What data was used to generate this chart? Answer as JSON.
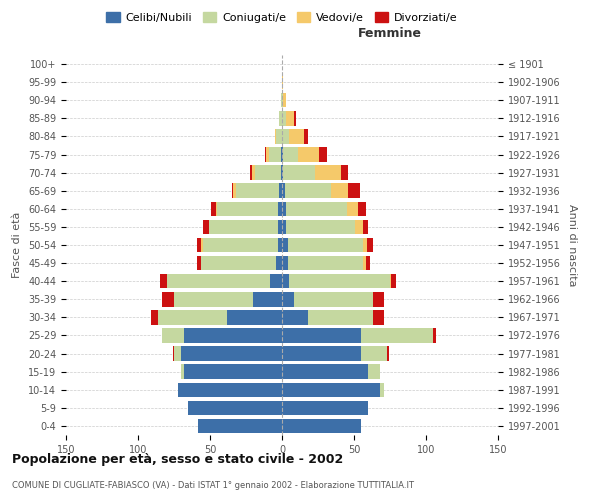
{
  "age_groups": [
    "0-4",
    "5-9",
    "10-14",
    "15-19",
    "20-24",
    "25-29",
    "30-34",
    "35-39",
    "40-44",
    "45-49",
    "50-54",
    "55-59",
    "60-64",
    "65-69",
    "70-74",
    "75-79",
    "80-84",
    "85-89",
    "90-94",
    "95-99",
    "100+"
  ],
  "birth_years": [
    "1997-2001",
    "1992-1996",
    "1987-1991",
    "1982-1986",
    "1977-1981",
    "1972-1976",
    "1967-1971",
    "1962-1966",
    "1957-1961",
    "1952-1956",
    "1947-1951",
    "1942-1946",
    "1937-1941",
    "1932-1936",
    "1927-1931",
    "1922-1926",
    "1917-1921",
    "1912-1916",
    "1907-1911",
    "1902-1906",
    "≤ 1901"
  ],
  "male": {
    "celibi": [
      58,
      65,
      72,
      68,
      70,
      68,
      38,
      20,
      8,
      4,
      3,
      3,
      3,
      2,
      1,
      1,
      0,
      0,
      0,
      0,
      0
    ],
    "coniugati": [
      0,
      0,
      0,
      2,
      5,
      15,
      48,
      55,
      72,
      52,
      52,
      48,
      42,
      30,
      18,
      8,
      4,
      2,
      1,
      0,
      0
    ],
    "vedovi": [
      0,
      0,
      0,
      0,
      0,
      0,
      0,
      0,
      0,
      0,
      1,
      0,
      1,
      2,
      2,
      2,
      1,
      0,
      0,
      0,
      0
    ],
    "divorziati": [
      0,
      0,
      0,
      0,
      1,
      0,
      5,
      8,
      5,
      3,
      3,
      4,
      3,
      1,
      1,
      1,
      0,
      0,
      0,
      0,
      0
    ]
  },
  "female": {
    "nubili": [
      55,
      60,
      68,
      60,
      55,
      55,
      18,
      8,
      5,
      4,
      4,
      3,
      3,
      2,
      1,
      1,
      0,
      0,
      0,
      0,
      0
    ],
    "coniugate": [
      0,
      0,
      3,
      8,
      18,
      50,
      45,
      55,
      70,
      52,
      52,
      48,
      42,
      32,
      22,
      10,
      5,
      3,
      1,
      0,
      0
    ],
    "vedove": [
      0,
      0,
      0,
      0,
      0,
      0,
      0,
      0,
      1,
      2,
      3,
      5,
      8,
      12,
      18,
      15,
      10,
      5,
      2,
      1,
      0
    ],
    "divorziate": [
      0,
      0,
      0,
      0,
      1,
      2,
      8,
      8,
      3,
      3,
      4,
      4,
      5,
      8,
      5,
      5,
      3,
      2,
      0,
      0,
      0
    ]
  },
  "colors": {
    "celibi_nubili": "#3d6fa8",
    "coniugati": "#c5d8a0",
    "vedovi": "#f5c96a",
    "divorziati": "#cc1111"
  },
  "title": "Popolazione per età, sesso e stato civile - 2002",
  "subtitle": "COMUNE DI CUGLIATE-FABIASCO (VA) - Dati ISTAT 1° gennaio 2002 - Elaborazione TUTTITALIA.IT",
  "xlabel_right": "Femmine",
  "ylabel_left": "Fasce di età",
  "ylabel_right": "Anni di nascita",
  "xlim": 150,
  "background_color": "#ffffff",
  "grid_color": "#cccccc"
}
